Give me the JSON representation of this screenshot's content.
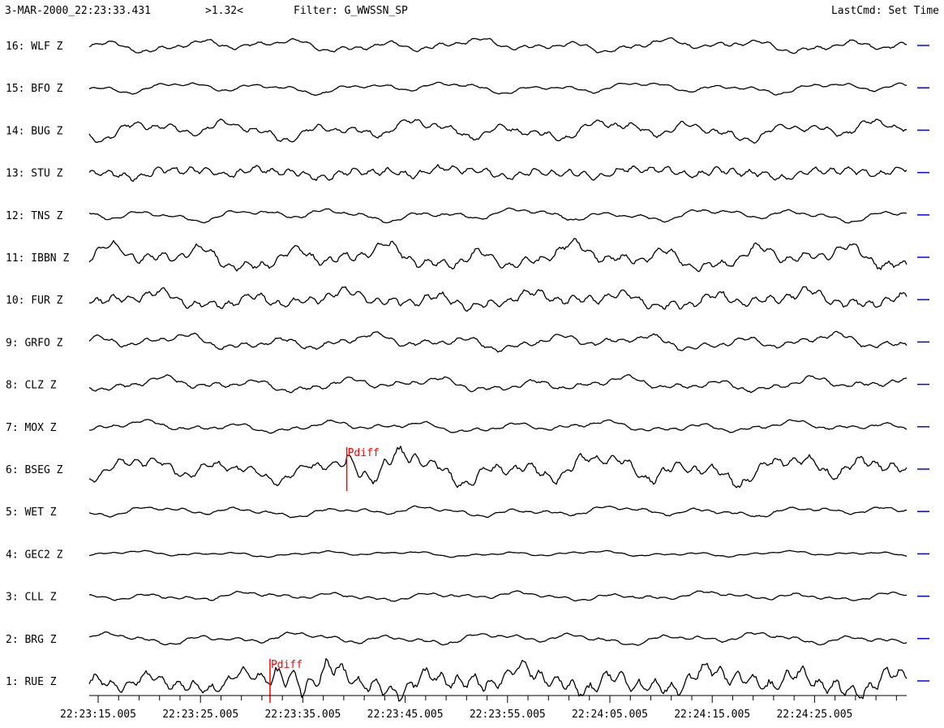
{
  "header": {
    "time": "3-MAR-2000_22:23:33.431",
    "scale": ">1.32<",
    "filter": "Filter: G_WWSSN_SP",
    "last_cmd": "LastCmd: Set Time"
  },
  "channels": [
    {
      "label": "16: WLF Z"
    },
    {
      "label": "15: BFO Z"
    },
    {
      "label": "14: BUG Z"
    },
    {
      "label": "13: STU Z"
    },
    {
      "label": "12: TNS Z"
    },
    {
      "label": "11: IBBN Z"
    },
    {
      "label": "10: FUR Z"
    },
    {
      "label": "9: GRFO Z"
    },
    {
      "label": "8: CLZ Z"
    },
    {
      "label": "7: MOX Z"
    },
    {
      "label": "6: BSEG Z"
    },
    {
      "label": "5: WET Z"
    },
    {
      "label": "4: GEC2 Z"
    },
    {
      "label": "3: CLL Z"
    },
    {
      "label": "2: BRG Z"
    },
    {
      "label": "1: RUE Z"
    }
  ],
  "picks": [
    {
      "channel": "6: BSEG Z",
      "phase": "Pdiff",
      "time": "22:23:39.3"
    },
    {
      "channel": "1: RUE Z",
      "phase": "Pdiff",
      "time": "22:23:31.8"
    }
  ],
  "time_axis": {
    "labels": [
      "22:23:15.005",
      "22:23:25.005",
      "22:23:35.005",
      "22:23:45.005",
      "22:23:55.005",
      "22:24:05.005",
      "22:24:15.005",
      "22:24:25.005"
    ]
  },
  "colors": {
    "trace": "#000000",
    "pick": "#ff0000",
    "marker": "#0000ff",
    "background": "#ffffff"
  }
}
